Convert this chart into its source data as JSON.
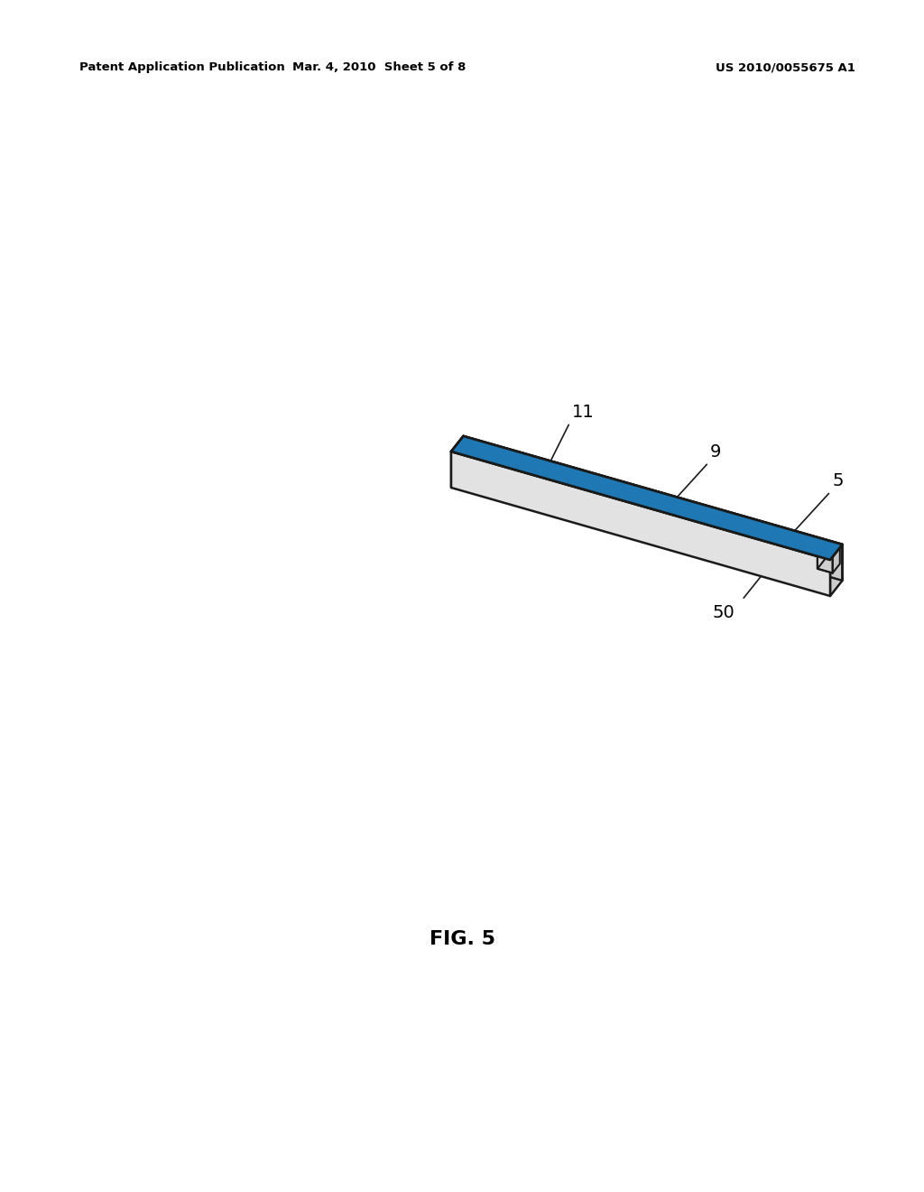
{
  "background_color": "#ffffff",
  "header_left": "Patent Application Publication",
  "header_middle": "Mar. 4, 2010  Sheet 5 of 8",
  "header_right": "US 2010/0055675 A1",
  "figure_label": "FIG. 5",
  "line_color": "#1a1a1a",
  "text_color": "#000000",
  "fill_top": "#f5f5f5",
  "fill_front": "#dddddd",
  "fill_right": "#cccccc",
  "fill_left_end": "#e5e5e5",
  "fill_right_end": "#d0d0d0"
}
